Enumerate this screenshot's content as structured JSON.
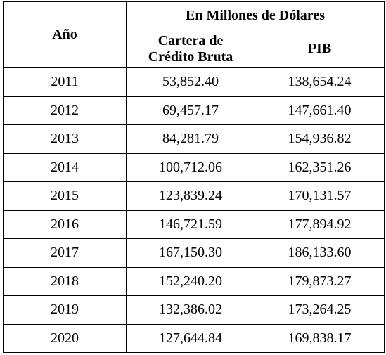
{
  "table": {
    "header": {
      "year_label": "Año",
      "group_label": "En Millones de Dólares",
      "col_cartera_line1": "Cartera de",
      "col_cartera_line2": "Crédito Bruta",
      "col_pib": "PIB"
    },
    "rows": [
      {
        "year": "2011",
        "cartera": "53,852.40",
        "pib": "138,654.24"
      },
      {
        "year": "2012",
        "cartera": "69,457.17",
        "pib": "147,661.40"
      },
      {
        "year": "2013",
        "cartera": "84,281.79",
        "pib": "154,936.82"
      },
      {
        "year": "2014",
        "cartera": "100,712.06",
        "pib": "162,351.26"
      },
      {
        "year": "2015",
        "cartera": "123,839.24",
        "pib": "170,131.57"
      },
      {
        "year": "2016",
        "cartera": "146,721.59",
        "pib": "177,894.92"
      },
      {
        "year": "2017",
        "cartera": "167,150.30",
        "pib": "186,133.60"
      },
      {
        "year": "2018",
        "cartera": "152,240.20",
        "pib": "179,873.27"
      },
      {
        "year": "2019",
        "cartera": "132,386.02",
        "pib": "173,264.25"
      },
      {
        "year": "2020",
        "cartera": "127,644.84",
        "pib": "169,838.17"
      }
    ]
  }
}
